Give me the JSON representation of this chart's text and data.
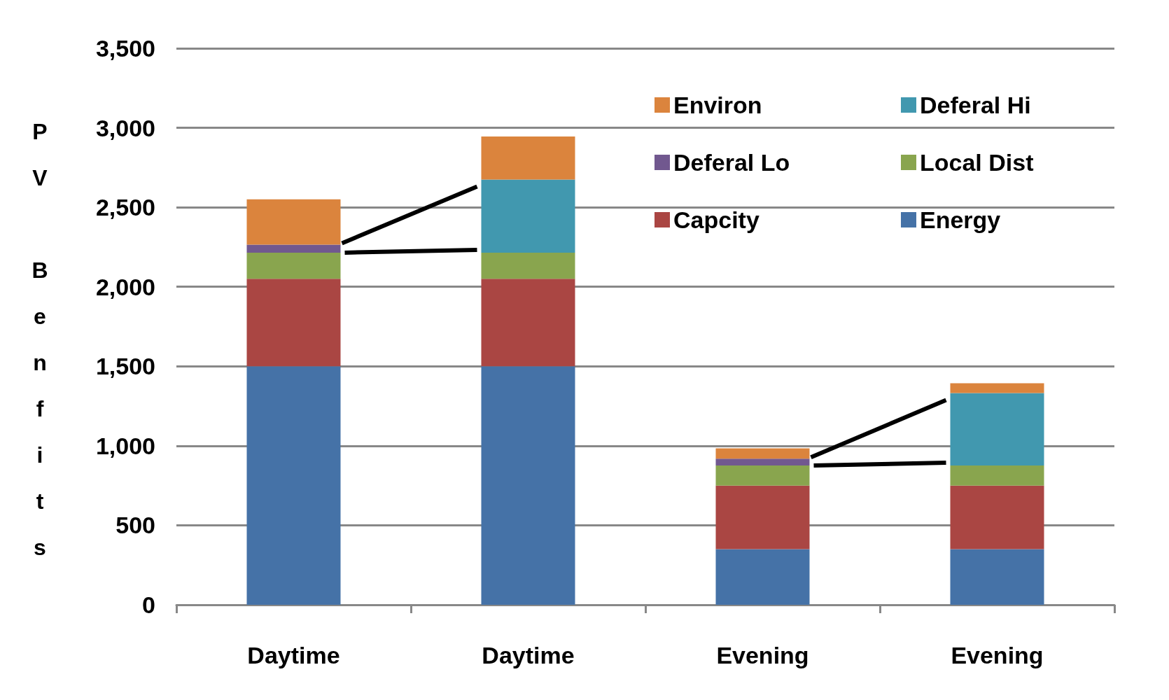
{
  "chart_data": {
    "type": "bar",
    "stacked": true,
    "ylabel": "PV Benfits",
    "categories": [
      "Daytime",
      "Daytime",
      "Evening",
      "Evening"
    ],
    "series": [
      {
        "name": "Energy",
        "color": "#4572a7",
        "values": [
          1500,
          1500,
          350,
          350
        ]
      },
      {
        "name": "Capcity",
        "color": "#aa4643",
        "values": [
          550,
          550,
          400,
          400
        ]
      },
      {
        "name": "Local Dist",
        "color": "#89a54e",
        "values": [
          165,
          165,
          126,
          126
        ]
      },
      {
        "name": "Deferal Lo",
        "color": "#71588f",
        "values": [
          50,
          null,
          43,
          null
        ]
      },
      {
        "name": "Deferal Hi",
        "color": "#4198af",
        "values": [
          null,
          460,
          null,
          456
        ]
      },
      {
        "name": "Environ",
        "color": "#db843d",
        "values": [
          285,
          270,
          65,
          61
        ]
      }
    ],
    "ylim": [
      0,
      3500
    ],
    "yticks": [
      0,
      500,
      {
        "value": 1000,
        "label": "1,000"
      },
      {
        "value": 1500,
        "label": "1,500"
      },
      {
        "value": 2000,
        "label": "2,000"
      },
      {
        "value": 2500,
        "label": "2,500"
      },
      {
        "value": 3000,
        "label": "3,000"
      },
      {
        "value": 3500,
        "label": "3,500"
      }
    ],
    "grid": "y",
    "legend": "top right"
  }
}
